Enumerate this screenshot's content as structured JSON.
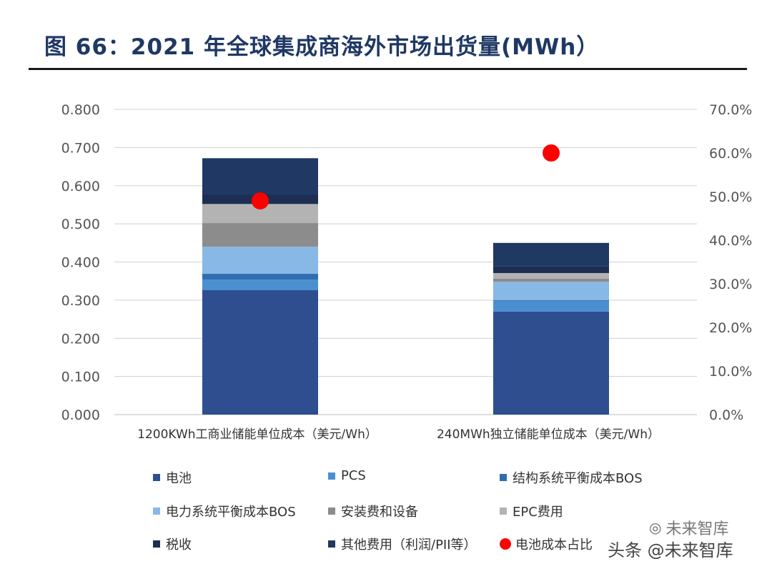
{
  "page": {
    "title": "图 66：2021 年全球集成商海外市场出货量(MWh）"
  },
  "chart_data": {
    "type": "bar",
    "stacked": true,
    "categories": [
      "1200KWh工商业储能单位成本（美元/Wh）",
      "240MWh独立储能单位成本（美元/Wh）"
    ],
    "series": [
      {
        "name": "电池",
        "color": "#2e4e8f",
        "values": [
          0.326,
          0.27
        ]
      },
      {
        "name": "PCS",
        "color": "#4a90d0",
        "values": [
          0.028,
          0.028
        ]
      },
      {
        "name": "结构系统平衡成本BOS",
        "color": "#2e6db0",
        "values": [
          0.015,
          0.002
        ]
      },
      {
        "name": "电力系统平衡成本BOS",
        "color": "#88b8e6",
        "values": [
          0.071,
          0.048
        ]
      },
      {
        "name": "安装费和设备",
        "color": "#8c8c8c",
        "values": [
          0.062,
          0.008
        ]
      },
      {
        "name": "EPC费用",
        "color": "#b3b3b3",
        "values": [
          0.05,
          0.015
        ]
      },
      {
        "name": "税收",
        "color": "#1c2e52",
        "values": [
          0.025,
          0.017
        ]
      },
      {
        "name": "其他费用（利润/PII等）",
        "color": "#203864",
        "values": [
          0.095,
          0.062
        ]
      }
    ],
    "secondary_series": {
      "name": "电池成本占比",
      "color": "#ff0000",
      "type": "scatter",
      "values": [
        0.49,
        0.6
      ]
    },
    "y_ticks": [
      "0.000",
      "0.100",
      "0.200",
      "0.300",
      "0.400",
      "0.500",
      "0.600",
      "0.700",
      "0.800"
    ],
    "y2_ticks": [
      "0.0%",
      "10.0%",
      "20.0%",
      "30.0%",
      "40.0%",
      "50.0%",
      "60.0%",
      "70.0%"
    ],
    "ylim": [
      0,
      0.8
    ],
    "y2lim": [
      0,
      0.7
    ],
    "grid": true,
    "legend_position": "bottom"
  },
  "watermark": {
    "top": "未来智库",
    "bottom": "头条 @未来智库"
  }
}
